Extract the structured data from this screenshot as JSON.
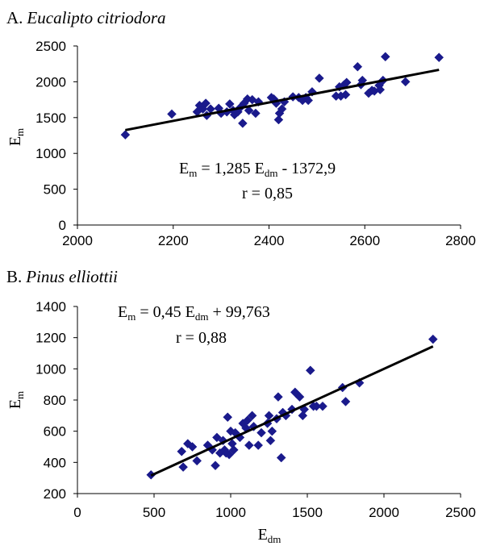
{
  "colors": {
    "marker": "#1a1a8c",
    "line": "#000000",
    "axis": "#000000"
  },
  "chart_data": [
    {
      "type": "scatter",
      "panel_prefix": "A.",
      "title": "Eucalipto citriodora",
      "xlabel": "",
      "ylabel_main": "E",
      "ylabel_sub": "m",
      "xlim": [
        2000,
        2800
      ],
      "ylim": [
        0,
        2500
      ],
      "xticks": [
        "2000",
        "2200",
        "2400",
        "2600",
        "2800"
      ],
      "yticks": [
        "0",
        "500",
        "1000",
        "1500",
        "2000",
        "2500"
      ],
      "equation": {
        "lhs": "E",
        "lhs_sub": "m",
        "rhs1": " = 1,285 E",
        "rhs1_sub": "dm",
        "rhs2": " - 1372,9"
      },
      "r_text": "r = 0,85",
      "trend": {
        "slope": 1.285,
        "intercept": -1372.9,
        "x0": 2100,
        "x1": 2755
      },
      "points": [
        [
          2100,
          1260
        ],
        [
          2197,
          1550
        ],
        [
          2250,
          1580
        ],
        [
          2255,
          1670
        ],
        [
          2262,
          1620
        ],
        [
          2268,
          1700
        ],
        [
          2270,
          1530
        ],
        [
          2278,
          1620
        ],
        [
          2295,
          1630
        ],
        [
          2300,
          1560
        ],
        [
          2312,
          1580
        ],
        [
          2318,
          1690
        ],
        [
          2325,
          1600
        ],
        [
          2328,
          1540
        ],
        [
          2335,
          1580
        ],
        [
          2340,
          1640
        ],
        [
          2345,
          1420
        ],
        [
          2348,
          1700
        ],
        [
          2355,
          1760
        ],
        [
          2358,
          1600
        ],
        [
          2365,
          1750
        ],
        [
          2372,
          1560
        ],
        [
          2378,
          1720
        ],
        [
          2405,
          1780
        ],
        [
          2410,
          1760
        ],
        [
          2415,
          1700
        ],
        [
          2420,
          1470
        ],
        [
          2422,
          1560
        ],
        [
          2427,
          1620
        ],
        [
          2432,
          1720
        ],
        [
          2450,
          1790
        ],
        [
          2462,
          1780
        ],
        [
          2470,
          1740
        ],
        [
          2477,
          1780
        ],
        [
          2482,
          1740
        ],
        [
          2490,
          1860
        ],
        [
          2505,
          2050
        ],
        [
          2540,
          1800
        ],
        [
          2547,
          1930
        ],
        [
          2550,
          1800
        ],
        [
          2557,
          1960
        ],
        [
          2560,
          1820
        ],
        [
          2562,
          1990
        ],
        [
          2585,
          2210
        ],
        [
          2592,
          1960
        ],
        [
          2595,
          2020
        ],
        [
          2608,
          1840
        ],
        [
          2615,
          1880
        ],
        [
          2620,
          1870
        ],
        [
          2630,
          1950
        ],
        [
          2632,
          1890
        ],
        [
          2638,
          2020
        ],
        [
          2643,
          2350
        ],
        [
          2685,
          2000
        ],
        [
          2755,
          2340
        ]
      ]
    },
    {
      "type": "scatter",
      "panel_prefix": "B.",
      "title": "Pinus elliottii",
      "xlabel_main": "E",
      "xlabel_sub": "dm",
      "ylabel_main": "E",
      "ylabel_sub": "m",
      "xlim": [
        0,
        2500
      ],
      "ylim": [
        200,
        1400
      ],
      "xticks": [
        "0",
        "500",
        "1000",
        "1500",
        "2000",
        "2500"
      ],
      "yticks": [
        "200",
        "400",
        "600",
        "800",
        "1000",
        "1200",
        "1400"
      ],
      "equation": {
        "lhs": "E",
        "lhs_sub": "m",
        "rhs1": " = 0,45 E",
        "rhs1_sub": "dm",
        "rhs2": " + 99,763"
      },
      "r_text": "r = 0,88",
      "trend": {
        "slope": 0.45,
        "intercept": 99.763,
        "x0": 480,
        "x1": 2320
      },
      "points": [
        [
          480,
          320
        ],
        [
          680,
          470
        ],
        [
          690,
          370
        ],
        [
          720,
          520
        ],
        [
          750,
          500
        ],
        [
          780,
          410
        ],
        [
          850,
          510
        ],
        [
          880,
          480
        ],
        [
          900,
          380
        ],
        [
          910,
          560
        ],
        [
          930,
          460
        ],
        [
          950,
          540
        ],
        [
          960,
          480
        ],
        [
          970,
          460
        ],
        [
          980,
          690
        ],
        [
          990,
          450
        ],
        [
          1000,
          600
        ],
        [
          1010,
          520
        ],
        [
          1020,
          480
        ],
        [
          1030,
          590
        ],
        [
          1060,
          560
        ],
        [
          1080,
          650
        ],
        [
          1100,
          620
        ],
        [
          1110,
          670
        ],
        [
          1120,
          510
        ],
        [
          1140,
          700
        ],
        [
          1150,
          630
        ],
        [
          1180,
          510
        ],
        [
          1200,
          590
        ],
        [
          1240,
          650
        ],
        [
          1250,
          700
        ],
        [
          1260,
          540
        ],
        [
          1270,
          600
        ],
        [
          1300,
          680
        ],
        [
          1310,
          820
        ],
        [
          1330,
          430
        ],
        [
          1340,
          720
        ],
        [
          1360,
          700
        ],
        [
          1400,
          740
        ],
        [
          1420,
          850
        ],
        [
          1430,
          840
        ],
        [
          1450,
          820
        ],
        [
          1470,
          700
        ],
        [
          1480,
          740
        ],
        [
          1520,
          990
        ],
        [
          1540,
          760
        ],
        [
          1560,
          760
        ],
        [
          1600,
          760
        ],
        [
          1730,
          880
        ],
        [
          1750,
          790
        ],
        [
          1840,
          910
        ],
        [
          2320,
          1190
        ]
      ]
    }
  ]
}
